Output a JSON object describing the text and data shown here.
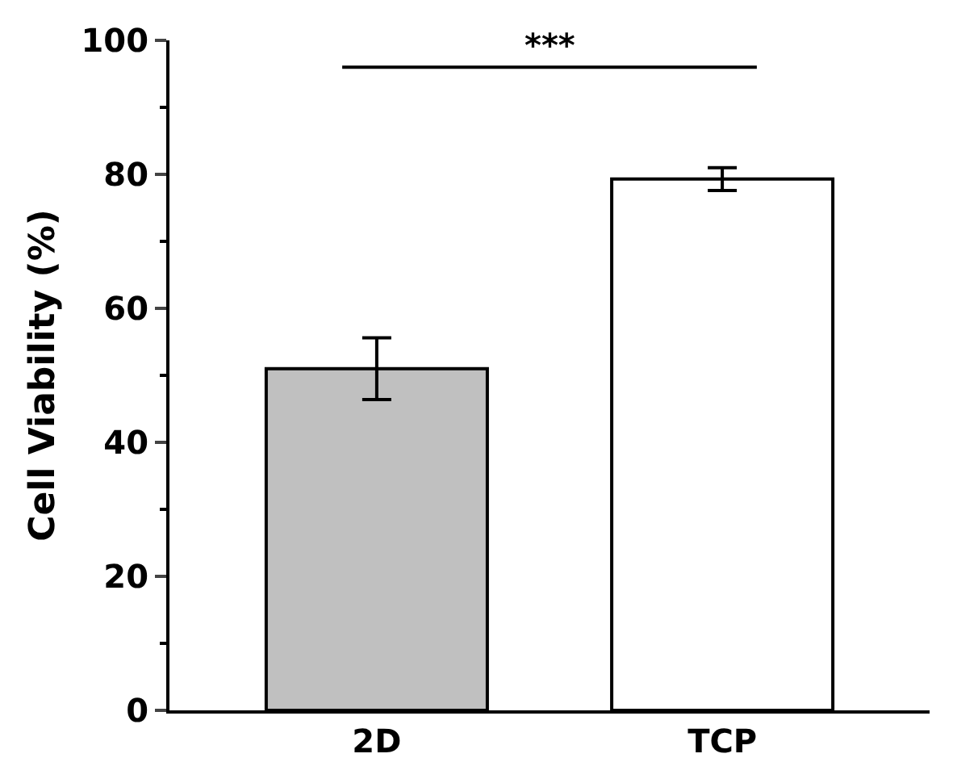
{
  "chart_data": {
    "type": "bar",
    "ylabel": "Cell Viability (%)",
    "categories": [
      "2D",
      "TCP"
    ],
    "values": [
      51,
      79.3
    ],
    "errors": [
      4.6,
      1.7
    ],
    "colors": [
      "#c0c0c0",
      "#ffffff"
    ],
    "ylim": [
      0,
      100
    ],
    "yticks": [
      0,
      {
        "value": 10,
        "label": null
      },
      20,
      {
        "value": 30,
        "label": null
      },
      40,
      {
        "value": 50,
        "label": null
      },
      60,
      {
        "value": 70,
        "label": null
      },
      80,
      {
        "value": 90,
        "label": null
      },
      100
    ],
    "annotations": [
      "***"
    ],
    "grid": false
  }
}
